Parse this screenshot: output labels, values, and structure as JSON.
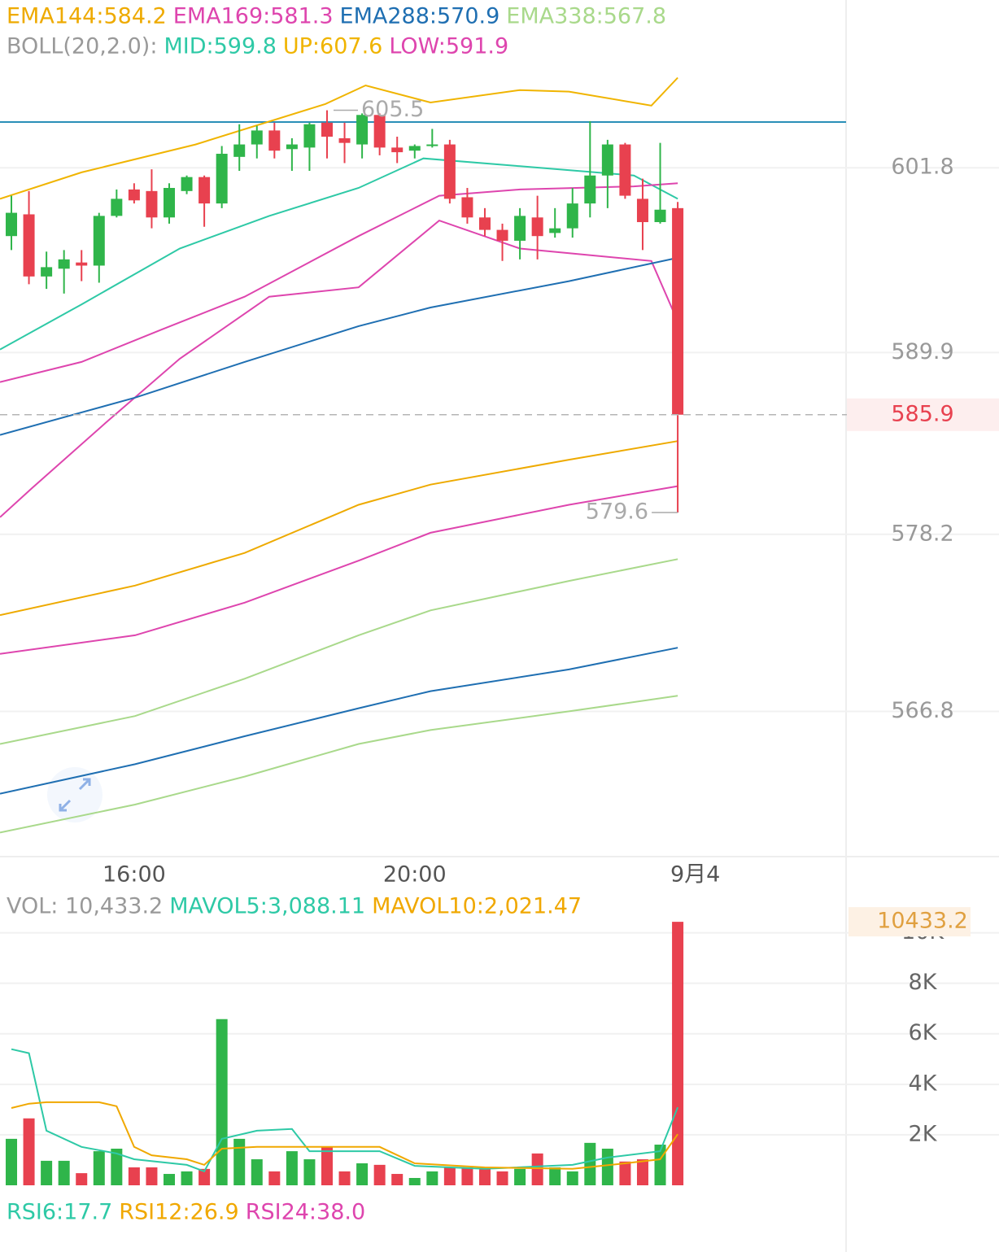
{
  "chart_data": [
    {
      "type": "candlestick",
      "indicator_label": "BOLL(20,2.0):",
      "up_color": "#2fb54a",
      "down_color": "#e8414f",
      "xlim": [
        -0.65,
        47.6
      ],
      "xticks": [
        {
          "value": 7,
          "label": "16:00"
        },
        {
          "value": 23,
          "label": "20:00"
        },
        {
          "value": 39,
          "label": "9月4"
        }
      ],
      "ylim": [
        557.5,
        612.6
      ],
      "yticks": [
        601.8,
        589.9,
        578.2,
        566.8
      ],
      "grid": true,
      "last_price": 585.9,
      "high_label": 605.5,
      "low_label": 579.6,
      "open": [
        597.4,
        598.8,
        594.8,
        595.3,
        595.7,
        595.5,
        598.7,
        600.4,
        600.3,
        598.6,
        600.3,
        601.2,
        599.5,
        602.5,
        603.3,
        604.2,
        603.0,
        603.1,
        604.7,
        603.7,
        603.3,
        605.2,
        603.1,
        602.9,
        603.2,
        603.3,
        599.9,
        598.6,
        597.8,
        597.1,
        598.6,
        597.6,
        597.9,
        599.5,
        601.3,
        603.3,
        599.8,
        598.3,
        599.2
      ],
      "high": [
        600.0,
        600.3,
        596.4,
        596.5,
        596.5,
        598.9,
        600.4,
        600.8,
        601.7,
        600.8,
        601.3,
        601.3,
        603.2,
        604.6,
        604.5,
        604.7,
        603.7,
        604.7,
        605.5,
        604.7,
        605.3,
        605.3,
        603.8,
        603.3,
        604.3,
        603.6,
        600.5,
        599.2,
        598.2,
        599.2,
        600.0,
        599.2,
        600.5,
        604.8,
        603.6,
        603.4,
        601.1,
        603.4,
        599.6
      ],
      "low": [
        596.5,
        594.3,
        594.0,
        593.7,
        594.5,
        594.4,
        598.6,
        599.5,
        597.9,
        598.2,
        600.1,
        598.0,
        599.2,
        601.6,
        602.4,
        602.4,
        601.6,
        601.6,
        602.4,
        602.1,
        602.4,
        602.6,
        602.1,
        602.4,
        603.1,
        599.5,
        598.2,
        597.4,
        595.8,
        595.9,
        595.9,
        597.3,
        597.3,
        598.6,
        599.2,
        599.8,
        596.5,
        598.2,
        579.6
      ],
      "close": [
        598.9,
        594.8,
        595.4,
        595.9,
        595.5,
        598.7,
        599.8,
        599.7,
        598.6,
        600.5,
        601.2,
        599.5,
        602.7,
        603.3,
        604.2,
        602.9,
        603.3,
        604.6,
        603.8,
        603.4,
        605.2,
        603.1,
        602.8,
        603.2,
        603.3,
        599.8,
        598.6,
        597.8,
        597.1,
        598.7,
        597.4,
        597.9,
        599.5,
        601.3,
        603.3,
        600.0,
        598.3,
        599.1,
        585.9
      ],
      "series": [
        {
          "name": "EMA144:584.2",
          "color": "#eeaa00",
          "x": [
            -0.65,
            7.05,
            13.3,
            19.8,
            23.9,
            31.8,
            38
          ],
          "values": [
            573.0,
            574.9,
            577.0,
            580.1,
            581.4,
            583.0,
            584.2
          ]
        },
        {
          "name": "EMA169:581.3",
          "color": "#de45ae",
          "x": [
            -0.65,
            7.05,
            13.3,
            19.8,
            23.9,
            31.8,
            38
          ],
          "values": [
            570.5,
            571.7,
            573.8,
            576.5,
            578.3,
            580.1,
            581.3
          ]
        },
        {
          "name": "EMA288:570.9",
          "color": "#1f6fb2",
          "x": [
            -0.65,
            7.05,
            13.3,
            19.8,
            23.9,
            31.8,
            38
          ],
          "values": [
            561.5,
            563.4,
            565.2,
            567.0,
            568.1,
            569.5,
            570.9
          ]
        },
        {
          "name": "EMA338:567.8",
          "color": "#a9d98b",
          "x": [
            -0.65,
            7.05,
            13.3,
            19.8,
            23.9,
            31.8,
            38
          ],
          "values": [
            559.0,
            560.8,
            562.6,
            564.7,
            565.6,
            566.8,
            567.8
          ]
        },
        {
          "name": "MID:599.8",
          "color": "#2ec9a6",
          "x": [
            -0.65,
            4.0,
            9.6,
            14.7,
            19.8,
            23.5,
            29.0,
            35.5,
            38
          ],
          "values": [
            590.1,
            593.0,
            596.6,
            598.7,
            600.5,
            602.4,
            601.9,
            601.3,
            599.8
          ]
        },
        {
          "name": "UP:607.6",
          "color": "#f0b400",
          "x": [
            -0.65,
            4.0,
            10.5,
            17.9,
            20.2,
            23.9,
            29.0,
            31.8,
            36.5,
            38
          ],
          "values": [
            599.8,
            601.5,
            603.3,
            605.9,
            607.1,
            606.0,
            606.8,
            606.7,
            605.8,
            607.6
          ]
        },
        {
          "name": "LOW:591.9",
          "color": "#de45ae",
          "x": [
            -0.65,
            1.2,
            5.4,
            9.6,
            14.7,
            19.8,
            24.4,
            29.0,
            36.5,
            38
          ],
          "values": [
            579.3,
            581.2,
            585.4,
            589.5,
            593.5,
            594.1,
            598.4,
            596.6,
            595.8,
            591.9
          ]
        },
        {
          "color": "#de45ae",
          "x": [
            -0.65,
            4.0,
            8.6,
            13.3,
            19.8,
            24.4,
            29.0,
            35.5,
            38
          ],
          "values": [
            588.0,
            589.3,
            591.4,
            593.5,
            597.4,
            600.0,
            600.4,
            600.6,
            600.8
          ]
        },
        {
          "color": "#1f6fb2",
          "x": [
            -0.65,
            7.05,
            13.3,
            19.8,
            23.9,
            31.8,
            38
          ],
          "values": [
            584.6,
            587.0,
            589.3,
            591.6,
            592.8,
            594.5,
            596.0
          ]
        },
        {
          "color": "#a9d98b",
          "x": [
            -0.65,
            7.05,
            13.3,
            19.8,
            23.9,
            31.8,
            38
          ],
          "values": [
            564.7,
            566.5,
            568.9,
            571.7,
            573.3,
            575.2,
            576.6
          ]
        }
      ]
    },
    {
      "type": "bar",
      "title": "VOL: 10,433.2",
      "ylim": [
        0,
        11500
      ],
      "yticks": [
        {
          "value": 2000,
          "label": "2K"
        },
        {
          "value": 4000,
          "label": "4K"
        },
        {
          "value": 6000,
          "label": "6K"
        },
        {
          "value": 8000,
          "label": "8K"
        },
        {
          "value": 10000,
          "label": "10K"
        }
      ],
      "current_value": 10433.2,
      "values": [
        1840,
        2650,
        970,
        970,
        480,
        1350,
        1450,
        710,
        710,
        450,
        550,
        650,
        6580,
        1840,
        1030,
        550,
        1350,
        1030,
        1520,
        550,
        870,
        810,
        450,
        290,
        550,
        710,
        710,
        710,
        550,
        650,
        1260,
        710,
        550,
        1680,
        1450,
        940,
        1030,
        1610,
        10433.2
      ],
      "series": [
        {
          "name": "MAVOL5:3,088.11",
          "color": "#2ec9a6",
          "x": [
            0,
            1,
            2,
            4,
            6,
            7,
            10,
            11,
            12,
            14,
            16,
            17,
            21,
            23,
            27,
            32,
            34,
            37,
            38
          ],
          "values": [
            5390,
            5230,
            2160,
            1520,
            1260,
            1030,
            810,
            550,
            1840,
            2160,
            2230,
            1350,
            1350,
            770,
            650,
            810,
            1100,
            1350,
            3088.11
          ]
        },
        {
          "name": "MAVOL10:2,021.47",
          "color": "#f0a800",
          "x": [
            0,
            1,
            2,
            5,
            6,
            7,
            8,
            10,
            11,
            12,
            14,
            18,
            21,
            23,
            27,
            32,
            35,
            37,
            38
          ],
          "values": [
            3060,
            3230,
            3290,
            3290,
            3130,
            1520,
            1190,
            1030,
            810,
            1450,
            1520,
            1520,
            1520,
            870,
            710,
            650,
            870,
            1030,
            2021.47
          ]
        }
      ]
    },
    {
      "type": "line",
      "series": [
        {
          "name": "RSI6:17.7",
          "color": "#2ec9a6"
        },
        {
          "name": "RSI12:26.9",
          "color": "#f0a800"
        },
        {
          "name": "RSI24:38.0",
          "color": "#de45ae"
        }
      ]
    }
  ]
}
